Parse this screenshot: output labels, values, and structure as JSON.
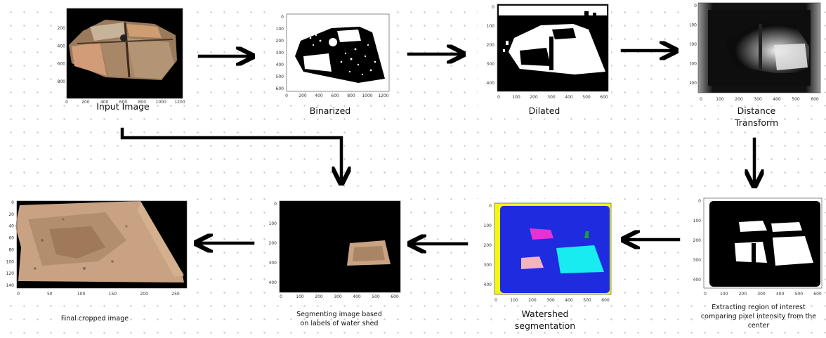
{
  "steps": {
    "input": {
      "caption": "Input Image",
      "x_ticks": [
        "0",
        "200",
        "400",
        "600",
        "800",
        "1000",
        "1200"
      ],
      "y_ticks": [
        "200",
        "400",
        "600",
        "800"
      ]
    },
    "binarized": {
      "caption": "Binarized",
      "x_ticks": [
        "0",
        "200",
        "400",
        "600",
        "800",
        "1000",
        "1200"
      ],
      "y_ticks": [
        "0",
        "100",
        "200",
        "300",
        "400",
        "500",
        "600"
      ]
    },
    "dilated": {
      "caption": "Dilated",
      "x_ticks": [
        "0",
        "100",
        "200",
        "300",
        "400",
        "500",
        "600"
      ],
      "y_ticks": [
        "0",
        "100",
        "200",
        "300",
        "400"
      ]
    },
    "distance": {
      "caption_line1": "Distance",
      "caption_line2": "Transform",
      "x_ticks": [
        "0",
        "100",
        "200",
        "300",
        "400",
        "500",
        "600"
      ],
      "y_ticks": [
        "0",
        "100",
        "200",
        "300",
        "400"
      ]
    },
    "roi": {
      "caption": "Extracting region of interest comparing pixel intensity from the center",
      "x_ticks": [
        "0",
        "100",
        "200",
        "300",
        "400",
        "500",
        "600"
      ],
      "y_ticks": [
        "0",
        "100",
        "200",
        "300",
        "400"
      ]
    },
    "watershed": {
      "caption_line1": "Watershed",
      "caption_line2": "segmentation",
      "x_ticks": [
        "0",
        "100",
        "200",
        "300",
        "400",
        "500",
        "600"
      ],
      "y_ticks": [
        "0",
        "100",
        "200",
        "300",
        "400"
      ]
    },
    "segmenting": {
      "caption_line1": "Segmenting image based",
      "caption_line2": "on labels of water shed",
      "x_ticks": [
        "0",
        "100",
        "200",
        "300",
        "400",
        "500",
        "600"
      ],
      "y_ticks": [
        "0",
        "100",
        "200",
        "300",
        "400"
      ]
    },
    "final": {
      "caption": "Final cropped image",
      "x_ticks": [
        "0",
        "50",
        "100",
        "150",
        "200",
        "250"
      ],
      "y_ticks": [
        "0",
        "20",
        "40",
        "60",
        "80",
        "100",
        "120",
        "140"
      ]
    }
  },
  "colors": {
    "arrow": "#000000",
    "watershed_bg": "#f5f516",
    "watershed_blue": "#1f2bde",
    "watershed_magenta": "#e830d6",
    "watershed_cyan": "#19ecf0",
    "watershed_pink": "#f2b4bf",
    "watershed_green": "#1ea035",
    "soil": "#c9a283"
  }
}
